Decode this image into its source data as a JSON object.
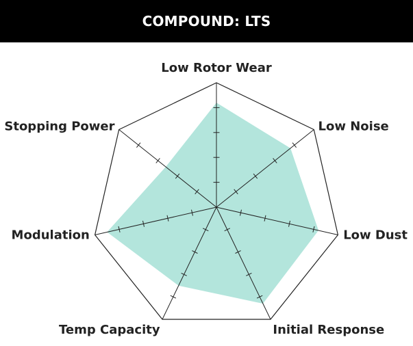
{
  "header": {
    "title": "COMPOUND: LTS"
  },
  "colors": {
    "header_bg": "#000000",
    "header_text": "#ffffff",
    "fill": "#b3e5dc",
    "outline": "#222222",
    "label": "#222222"
  },
  "chart_data": {
    "type": "radar",
    "axes": [
      "Low Rotor Wear",
      "Low Noise",
      "Low Dust",
      "Initial Response",
      "Temp Capacity",
      "Modulation",
      "Stopping Power"
    ],
    "max": 5,
    "ticks": [
      1,
      2,
      3,
      4
    ],
    "series": [
      {
        "values": [
          4.2,
          3.8,
          4.2,
          4.3,
          3.5,
          4.5,
          2.6
        ]
      }
    ]
  }
}
